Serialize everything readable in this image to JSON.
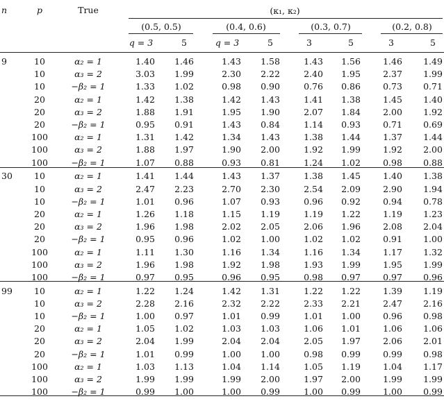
{
  "header": {
    "n": "n",
    "p": "p",
    "true": "True",
    "kappa": "(κ₁, κ₂)",
    "groups": [
      "(0.5, 0.5)",
      "(0.4, 0.6)",
      "(0.3, 0.7)",
      "(0.2, 0.8)"
    ],
    "sub": [
      "q = 3",
      "5",
      "q = 3",
      "5",
      "3",
      "5",
      "3",
      "5"
    ]
  },
  "rows": [
    {
      "n": "9",
      "p": "10",
      "true": "α₂ = 1",
      "v": [
        "1.40",
        "1.46",
        "1.43",
        "1.58",
        "1.43",
        "1.56",
        "1.46",
        "1.49"
      ]
    },
    {
      "n": "",
      "p": "10",
      "true": "α₃ = 2",
      "v": [
        "3.03",
        "1.99",
        "2.30",
        "2.22",
        "2.40",
        "1.95",
        "2.37",
        "1.99"
      ]
    },
    {
      "n": "",
      "p": "10",
      "true": "−β₂ = 1",
      "v": [
        "1.33",
        "1.02",
        "0.98",
        "0.90",
        "0.76",
        "0.86",
        "0.73",
        "0.71"
      ]
    },
    {
      "n": "",
      "p": "20",
      "true": "α₂ = 1",
      "v": [
        "1.42",
        "1.38",
        "1.42",
        "1.43",
        "1.41",
        "1.38",
        "1.45",
        "1.40"
      ]
    },
    {
      "n": "",
      "p": "20",
      "true": "α₃ = 2",
      "v": [
        "1.88",
        "1.91",
        "1.95",
        "1.90",
        "2.07",
        "1.84",
        "2.00",
        "1.92"
      ]
    },
    {
      "n": "",
      "p": "20",
      "true": "−β₂ = 1",
      "v": [
        "0.95",
        "0.91",
        "1.43",
        "0.84",
        "1.14",
        "0.93",
        "0.71",
        "0.69"
      ]
    },
    {
      "n": "",
      "p": "100",
      "true": "α₂ = 1",
      "v": [
        "1.31",
        "1.42",
        "1.34",
        "1.43",
        "1.38",
        "1.44",
        "1.37",
        "1.44"
      ]
    },
    {
      "n": "",
      "p": "100",
      "true": "α₃ = 2",
      "v": [
        "1.88",
        "1.97",
        "1.90",
        "2.00",
        "1.92",
        "1.99",
        "1.92",
        "2.00"
      ]
    },
    {
      "n": "",
      "p": "100",
      "true": "−β₂ = 1",
      "v": [
        "1.07",
        "0.88",
        "0.93",
        "0.81",
        "1.24",
        "1.02",
        "0.98",
        "0.88"
      ]
    },
    {
      "n": "30",
      "p": "10",
      "true": "α₂ = 1",
      "v": [
        "1.41",
        "1.44",
        "1.43",
        "1.37",
        "1.38",
        "1.45",
        "1.40",
        "1.38"
      ]
    },
    {
      "n": "",
      "p": "10",
      "true": "α₃ = 2",
      "v": [
        "2.47",
        "2.23",
        "2.70",
        "2.30",
        "2.54",
        "2.09",
        "2.90",
        "1.94"
      ]
    },
    {
      "n": "",
      "p": "10",
      "true": "−β₂ = 1",
      "v": [
        "1.01",
        "0.96",
        "1.07",
        "0.93",
        "0.96",
        "0.92",
        "0.94",
        "0.78"
      ]
    },
    {
      "n": "",
      "p": "20",
      "true": "α₂ = 1",
      "v": [
        "1.26",
        "1.18",
        "1.15",
        "1.19",
        "1.19",
        "1.22",
        "1.19",
        "1.23"
      ]
    },
    {
      "n": "",
      "p": "20",
      "true": "α₃ = 2",
      "v": [
        "1.96",
        "1.98",
        "2.02",
        "2.05",
        "2.06",
        "1.96",
        "2.08",
        "2.04"
      ]
    },
    {
      "n": "",
      "p": "20",
      "true": "−β₂ = 1",
      "v": [
        "0.95",
        "0.96",
        "1.02",
        "1.00",
        "1.02",
        "1.02",
        "0.91",
        "1.00"
      ]
    },
    {
      "n": "",
      "p": "100",
      "true": "α₂ = 1",
      "v": [
        "1.11",
        "1.30",
        "1.16",
        "1.34",
        "1.16",
        "1.34",
        "1.17",
        "1.32"
      ]
    },
    {
      "n": "",
      "p": "100",
      "true": "α₃ = 2",
      "v": [
        "1.96",
        "1.98",
        "1.92",
        "1.98",
        "1.93",
        "1.99",
        "1.95",
        "1.99"
      ]
    },
    {
      "n": "",
      "p": "100",
      "true": "−β₂ = 1",
      "v": [
        "0.97",
        "0.95",
        "0.96",
        "0.95",
        "0.98",
        "0.97",
        "0.97",
        "0.96"
      ]
    },
    {
      "n": "99",
      "p": "10",
      "true": "α₂ = 1",
      "v": [
        "1.22",
        "1.24",
        "1.42",
        "1.31",
        "1.22",
        "1.22",
        "1.39",
        "1.19"
      ]
    },
    {
      "n": "",
      "p": "10",
      "true": "α₃ = 2",
      "v": [
        "2.28",
        "2.16",
        "2.32",
        "2.22",
        "2.33",
        "2.21",
        "2.47",
        "2.16"
      ]
    },
    {
      "n": "",
      "p": "10",
      "true": "−β₂ = 1",
      "v": [
        "1.00",
        "0.97",
        "1.01",
        "0.99",
        "1.01",
        "1.00",
        "0.96",
        "0.98"
      ]
    },
    {
      "n": "",
      "p": "20",
      "true": "α₂ = 1",
      "v": [
        "1.05",
        "1.02",
        "1.03",
        "1.03",
        "1.06",
        "1.01",
        "1.06",
        "1.06"
      ]
    },
    {
      "n": "",
      "p": "20",
      "true": "α₃ = 2",
      "v": [
        "2.04",
        "1.99",
        "2.04",
        "2.04",
        "2.05",
        "1.97",
        "2.06",
        "2.01"
      ]
    },
    {
      "n": "",
      "p": "20",
      "true": "−β₂ = 1",
      "v": [
        "1.01",
        "0.99",
        "1.00",
        "1.00",
        "0.98",
        "0.99",
        "0.99",
        "0.98"
      ]
    },
    {
      "n": "",
      "p": "100",
      "true": "α₂ = 1",
      "v": [
        "1.03",
        "1.13",
        "1.04",
        "1.14",
        "1.05",
        "1.19",
        "1.04",
        "1.17"
      ]
    },
    {
      "n": "",
      "p": "100",
      "true": "α₃ = 2",
      "v": [
        "1.99",
        "1.99",
        "1.99",
        "2.00",
        "1.97",
        "2.00",
        "1.99",
        "1.99"
      ]
    },
    {
      "n": "",
      "p": "100",
      "true": "−β₂ = 1",
      "v": [
        "0.99",
        "1.00",
        "1.00",
        "0.99",
        "1.00",
        "0.99",
        "1.00",
        "0.99"
      ]
    }
  ]
}
